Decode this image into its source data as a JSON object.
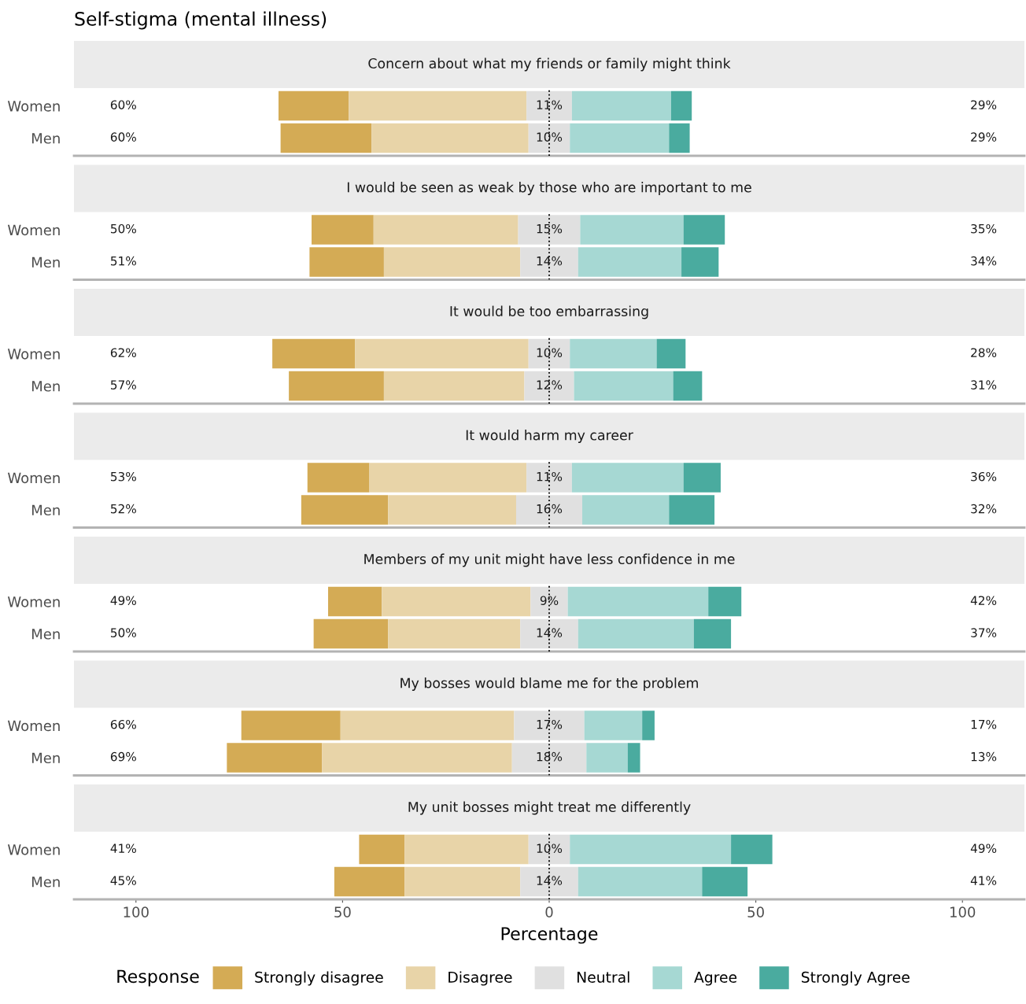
{
  "chart_data": [
    {
      "type": "bar",
      "orientation": "horizontal",
      "title": "Concern about what my friends or family might think",
      "legend_title": "Response",
      "legend": "bottom",
      "categories": [
        "Women",
        "Men"
      ],
      "xlim": [
        -115,
        115
      ],
      "tick_labels": "y",
      "grid": false,
      "ref_lines": [
        {
          "axis": "x",
          "value": 0,
          "color": "#000000",
          "line_style": "dotted"
        }
      ],
      "annotations": [
        "Self-stigma (mental illness)",
        "60%",
        "60%",
        "29%",
        "29%"
      ],
      "series": [
        {
          "name": "Strongly disagree",
          "color": "#d4ab55",
          "base": [
            -65.5,
            -65
          ],
          "values": [
            17,
            22
          ]
        },
        {
          "name": "Disagree",
          "color": "#e8d4a8",
          "base": [
            -48.5,
            -43
          ],
          "values": [
            43,
            38
          ]
        },
        {
          "name": "Neutral",
          "color": "#e0e0e0",
          "base": [
            -5.5,
            -5
          ],
          "values": [
            11,
            10
          ],
          "value_labels": [
            "11%",
            "10%"
          ]
        },
        {
          "name": "Agree",
          "color": "#a6d8d3",
          "base": [
            5.5,
            5
          ],
          "values": [
            24,
            24
          ]
        },
        {
          "name": "Strongly Agree",
          "color": "#4aab9f",
          "base": [
            29.5,
            29
          ],
          "values": [
            5,
            5
          ]
        }
      ]
    },
    {
      "type": "bar",
      "orientation": "horizontal",
      "title": "I would be seen as weak by those who are important to me",
      "categories": [
        "Women",
        "Men"
      ],
      "xlim": [
        -115,
        115
      ],
      "tick_labels": "y",
      "grid": false,
      "ref_lines": [
        {
          "axis": "x",
          "value": 0,
          "color": "#000000",
          "line_style": "dotted"
        }
      ],
      "annotations": [
        "50%",
        "51%",
        "35%",
        "34%"
      ],
      "series": [
        {
          "color": "#d4ab55",
          "base": [
            -57.5,
            -58
          ],
          "values": [
            15,
            18
          ]
        },
        {
          "color": "#e8d4a8",
          "base": [
            -42.5,
            -40
          ],
          "values": [
            35,
            33
          ]
        },
        {
          "color": "#e0e0e0",
          "base": [
            -7.5,
            -7
          ],
          "values": [
            15,
            14
          ],
          "value_labels": [
            "15%",
            "14%"
          ]
        },
        {
          "color": "#a6d8d3",
          "base": [
            7.5,
            7
          ],
          "values": [
            25,
            25
          ]
        },
        {
          "color": "#4aab9f",
          "base": [
            32.5,
            32
          ],
          "values": [
            10,
            9
          ]
        }
      ]
    },
    {
      "type": "bar",
      "orientation": "horizontal",
      "title": "It would be too embarrassing",
      "categories": [
        "Women",
        "Men"
      ],
      "xlim": [
        -115,
        115
      ],
      "tick_labels": "y",
      "grid": false,
      "ref_lines": [
        {
          "axis": "x",
          "value": 0,
          "color": "#000000",
          "line_style": "dotted"
        }
      ],
      "annotations": [
        "62%",
        "57%",
        "28%",
        "31%"
      ],
      "series": [
        {
          "color": "#d4ab55",
          "base": [
            -67,
            -63
          ],
          "values": [
            20,
            23
          ]
        },
        {
          "color": "#e8d4a8",
          "base": [
            -47,
            -40
          ],
          "values": [
            42,
            34
          ]
        },
        {
          "color": "#e0e0e0",
          "base": [
            -5,
            -6
          ],
          "values": [
            10,
            12
          ],
          "value_labels": [
            "10%",
            "12%"
          ]
        },
        {
          "color": "#a6d8d3",
          "base": [
            5,
            6
          ],
          "values": [
            21,
            24
          ]
        },
        {
          "color": "#4aab9f",
          "base": [
            26,
            30
          ],
          "values": [
            7,
            7
          ]
        }
      ]
    },
    {
      "type": "bar",
      "orientation": "horizontal",
      "title": "It would harm my career",
      "categories": [
        "Women",
        "Men"
      ],
      "xlim": [
        -115,
        115
      ],
      "tick_labels": "y",
      "grid": false,
      "ref_lines": [
        {
          "axis": "x",
          "value": 0,
          "color": "#000000",
          "line_style": "dotted"
        }
      ],
      "annotations": [
        "53%",
        "52%",
        "36%",
        "32%"
      ],
      "series": [
        {
          "color": "#d4ab55",
          "base": [
            -58.5,
            -60
          ],
          "values": [
            15,
            21
          ]
        },
        {
          "color": "#e8d4a8",
          "base": [
            -43.5,
            -39
          ],
          "values": [
            38,
            31
          ]
        },
        {
          "color": "#e0e0e0",
          "base": [
            -5.5,
            -8
          ],
          "values": [
            11,
            16
          ],
          "value_labels": [
            "11%",
            "16%"
          ]
        },
        {
          "color": "#a6d8d3",
          "base": [
            5.5,
            8
          ],
          "values": [
            27,
            21
          ]
        },
        {
          "color": "#4aab9f",
          "base": [
            32.5,
            29
          ],
          "values": [
            9,
            11
          ]
        }
      ]
    },
    {
      "type": "bar",
      "orientation": "horizontal",
      "title": "Members of my unit might have less confidence in me",
      "categories": [
        "Women",
        "Men"
      ],
      "xlim": [
        -115,
        115
      ],
      "tick_labels": "y",
      "grid": false,
      "ref_lines": [
        {
          "axis": "x",
          "value": 0,
          "color": "#000000",
          "line_style": "dotted"
        }
      ],
      "annotations": [
        "49%",
        "50%",
        "42%",
        "37%"
      ],
      "series": [
        {
          "color": "#d4ab55",
          "base": [
            -53.5,
            -57
          ],
          "values": [
            13,
            18
          ]
        },
        {
          "color": "#e8d4a8",
          "base": [
            -40.5,
            -39
          ],
          "values": [
            36,
            32
          ]
        },
        {
          "color": "#e0e0e0",
          "base": [
            -4.5,
            -7
          ],
          "values": [
            9,
            14
          ],
          "value_labels": [
            "9%",
            "14%"
          ]
        },
        {
          "color": "#a6d8d3",
          "base": [
            4.5,
            7
          ],
          "values": [
            34,
            28
          ]
        },
        {
          "color": "#4aab9f",
          "base": [
            38.5,
            35
          ],
          "values": [
            8,
            9
          ]
        }
      ]
    },
    {
      "type": "bar",
      "orientation": "horizontal",
      "title": "My bosses would blame me for the problem",
      "categories": [
        "Women",
        "Men"
      ],
      "xlim": [
        -115,
        115
      ],
      "tick_labels": "y",
      "grid": false,
      "ref_lines": [
        {
          "axis": "x",
          "value": 0,
          "color": "#000000",
          "line_style": "dotted"
        }
      ],
      "annotations": [
        "66%",
        "69%",
        "17%",
        "13%"
      ],
      "series": [
        {
          "color": "#d4ab55",
          "base": [
            -74.5,
            -78
          ],
          "values": [
            24,
            23
          ]
        },
        {
          "color": "#e8d4a8",
          "base": [
            -50.5,
            -55
          ],
          "values": [
            42,
            46
          ]
        },
        {
          "color": "#e0e0e0",
          "base": [
            -8.5,
            -9
          ],
          "values": [
            17,
            18
          ],
          "value_labels": [
            "17%",
            "18%"
          ]
        },
        {
          "color": "#a6d8d3",
          "base": [
            8.5,
            9
          ],
          "values": [
            14,
            10
          ]
        },
        {
          "color": "#4aab9f",
          "base": [
            22.5,
            19
          ],
          "values": [
            3,
            3
          ]
        }
      ]
    },
    {
      "type": "bar",
      "orientation": "horizontal",
      "title": "My unit bosses might treat me differently",
      "xlabel": "Percentage",
      "categories": [
        "Women",
        "Men"
      ],
      "xlim": [
        -115,
        115
      ],
      "xticks": [
        {
          "value": -100,
          "label": "100"
        },
        {
          "value": -50,
          "label": "50"
        },
        0,
        50,
        100
      ],
      "grid": false,
      "ref_lines": [
        {
          "axis": "x",
          "value": 0,
          "color": "#000000",
          "line_style": "dotted"
        }
      ],
      "annotations": [
        "41%",
        "45%",
        "49%",
        "41%"
      ],
      "series": [
        {
          "color": "#d4ab55",
          "base": [
            -46,
            -52
          ],
          "values": [
            11,
            17
          ]
        },
        {
          "color": "#e8d4a8",
          "base": [
            -35,
            -35
          ],
          "values": [
            30,
            28
          ]
        },
        {
          "color": "#e0e0e0",
          "base": [
            -5,
            -7
          ],
          "values": [
            10,
            14
          ],
          "value_labels": [
            "10%",
            "14%"
          ]
        },
        {
          "color": "#a6d8d3",
          "base": [
            5,
            7
          ],
          "values": [
            39,
            30
          ]
        },
        {
          "color": "#4aab9f",
          "base": [
            44,
            37
          ],
          "values": [
            10,
            11
          ]
        }
      ]
    }
  ]
}
